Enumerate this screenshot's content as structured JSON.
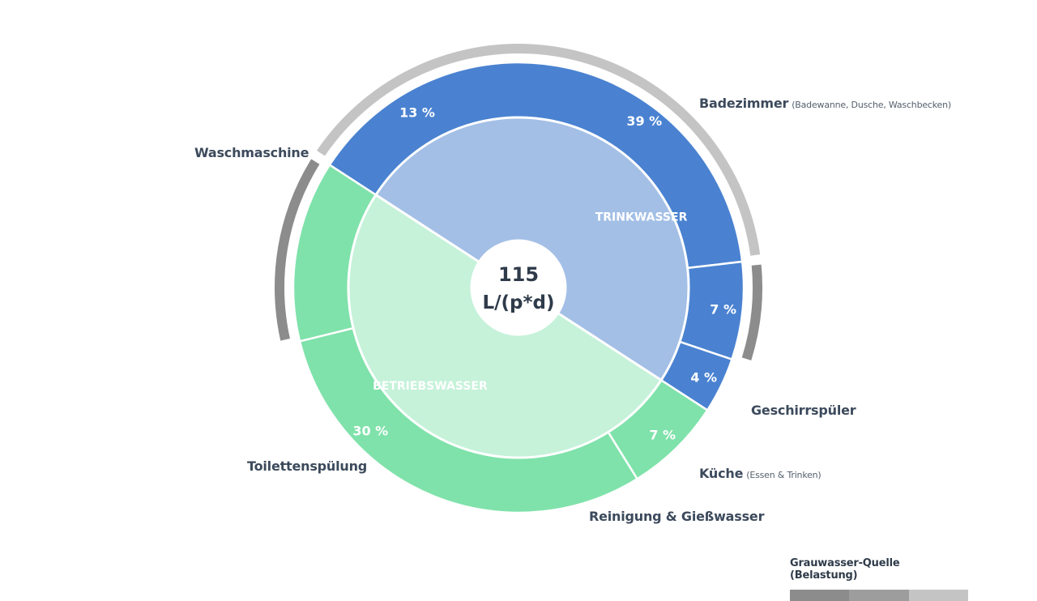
{
  "colors": {
    "trink_outer": "#4a82d1",
    "trink_inner": "#a3bfe6",
    "betrieb_outer": "#7fe2aa",
    "betrieb_inner": "#c5f2d9",
    "grey_light": "#c4c4c4",
    "grey_dark": "#8c8c8c",
    "label": "#3c4a5c",
    "center_text": "#2f3b4a"
  },
  "center": {
    "value": "115",
    "unit": "L/(p*d)"
  },
  "legend": {
    "title": "Grauwasser-Quelle (Belastung)",
    "levels": [
      "grey_dark",
      "grey_dark",
      "grey_light"
    ]
  },
  "chart_data": {
    "type": "pie",
    "title": "",
    "total": "115 L/(p*d)",
    "inner": [
      {
        "name": "TRINKWASSER",
        "share": 50,
        "color": "trink_inner"
      },
      {
        "name": "BETRIEBSWASSER",
        "share": 50,
        "color": "betrieb_inner"
      }
    ],
    "outer": [
      {
        "name": "Badezimmer",
        "note": "(Badewanne, Dusche, Waschbecken)",
        "value": 39,
        "label": "39 %",
        "group": "TRINKWASSER",
        "color": "trink_outer",
        "graywater": "light"
      },
      {
        "name": "Geschirrspüler",
        "note": "",
        "value": 7,
        "label": "7 %",
        "group": "TRINKWASSER",
        "color": "trink_outer",
        "graywater": "dark"
      },
      {
        "name": "Küche",
        "note": "(Essen & Trinken)",
        "value": 4,
        "label": "4 %",
        "group": "TRINKWASSER",
        "color": "trink_outer",
        "graywater": "none"
      },
      {
        "name": "Reinigung & Gießwasser",
        "note": "",
        "value": 7,
        "label": "7 %",
        "group": "BETRIEBSWASSER",
        "color": "betrieb_outer",
        "graywater": "none"
      },
      {
        "name": "Toilettenspülung",
        "note": "",
        "value": 30,
        "label": "30 %",
        "group": "BETRIEBSWASSER",
        "color": "betrieb_outer",
        "graywater": "none"
      },
      {
        "name": "Waschmaschine",
        "note": "",
        "value": 13,
        "label": "13 %",
        "group": "BETRIEBSWASSER",
        "color": "betrieb_outer",
        "graywater": "dark"
      }
    ]
  }
}
